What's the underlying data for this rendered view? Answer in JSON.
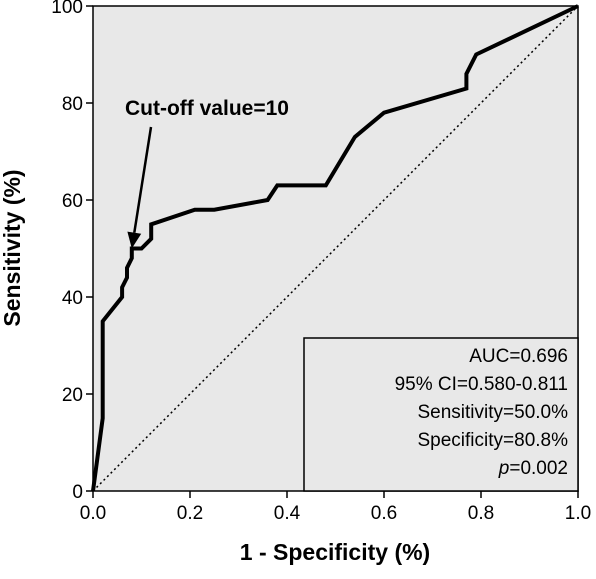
{
  "chart_data": {
    "type": "line",
    "xlabel": "1 - Specificity (%)",
    "ylabel": "Sensitivity (%)",
    "xlim": [
      0,
      1
    ],
    "ylim": [
      0,
      100
    ],
    "x_ticks": [
      "0.0",
      "0.2",
      "0.4",
      "0.6",
      "0.8",
      "1.0"
    ],
    "y_ticks": [
      "0",
      "20",
      "40",
      "60",
      "80",
      "100"
    ],
    "grid": false,
    "background": "#e8e8e8",
    "series": [
      {
        "style": "solid",
        "color": "#000000",
        "x": [
          0,
          0.02,
          0.02,
          0.06,
          0.06,
          0.07,
          0.07,
          0.08,
          0.08,
          0.1,
          0.12,
          0.12,
          0.21,
          0.25,
          0.36,
          0.38,
          0.48,
          0.54,
          0.6,
          0.77,
          0.77,
          0.79,
          1.0
        ],
        "y": [
          0,
          15,
          35,
          40,
          42,
          44,
          46,
          48,
          50,
          50,
          52,
          55,
          58,
          58,
          60,
          63,
          63,
          73,
          78,
          83,
          86,
          90,
          100
        ]
      },
      {
        "style": "dotted",
        "color": "#000000",
        "x": [
          0,
          1
        ],
        "y": [
          0,
          100
        ]
      }
    ],
    "annotation": {
      "text": "Cut-off value=10",
      "point": [
        0.08,
        50
      ]
    },
    "stats": {
      "auc": "AUC=0.696",
      "ci": "95% CI=0.580-0.811",
      "sensitivity": "Sensitivity=50.0%",
      "specificity": "Specificity=80.8%",
      "p_label": "p",
      "p_value": "=0.002",
      "legend_position": "bottom-right"
    }
  }
}
